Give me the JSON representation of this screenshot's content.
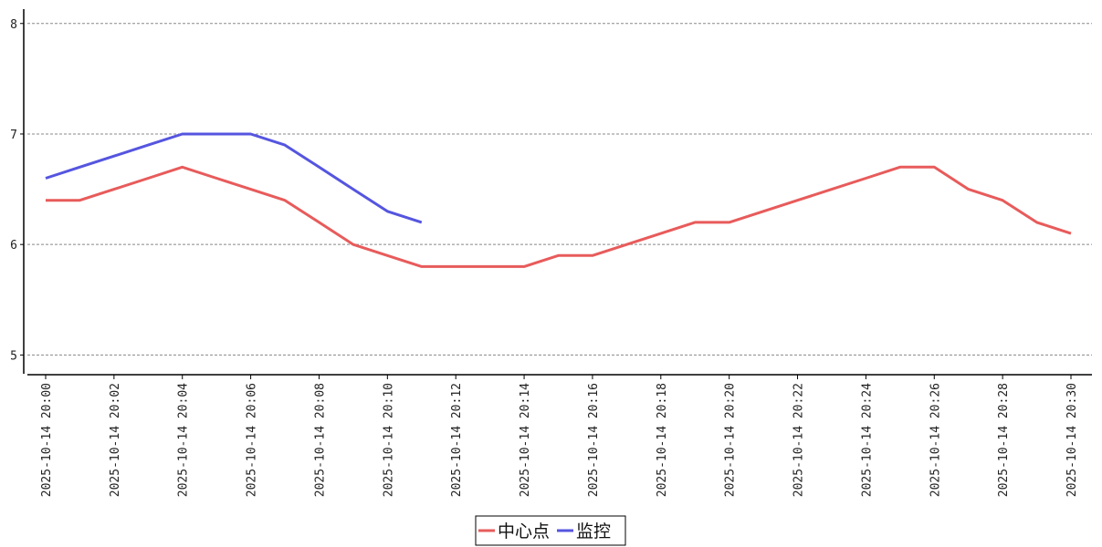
{
  "chart_data": {
    "type": "line",
    "title": "",
    "xlabel": "",
    "ylabel": "",
    "x": [
      "2025-10-14 20:00",
      "2025-10-14 20:01",
      "2025-10-14 20:02",
      "2025-10-14 20:03",
      "2025-10-14 20:04",
      "2025-10-14 20:05",
      "2025-10-14 20:06",
      "2025-10-14 20:07",
      "2025-10-14 20:08",
      "2025-10-14 20:09",
      "2025-10-14 20:10",
      "2025-10-14 20:11",
      "2025-10-14 20:12",
      "2025-10-14 20:13",
      "2025-10-14 20:14",
      "2025-10-14 20:15",
      "2025-10-14 20:16",
      "2025-10-14 20:17",
      "2025-10-14 20:18",
      "2025-10-14 20:19",
      "2025-10-14 20:20",
      "2025-10-14 20:21",
      "2025-10-14 20:22",
      "2025-10-14 20:23",
      "2025-10-14 20:24",
      "2025-10-14 20:25",
      "2025-10-14 20:26",
      "2025-10-14 20:27",
      "2025-10-14 20:28",
      "2025-10-14 20:29",
      "2025-10-14 20:30"
    ],
    "x_tick_labels": [
      "2025-10-14 20:00",
      "2025-10-14 20:02",
      "2025-10-14 20:04",
      "2025-10-14 20:06",
      "2025-10-14 20:08",
      "2025-10-14 20:10",
      "2025-10-14 20:12",
      "2025-10-14 20:14",
      "2025-10-14 20:16",
      "2025-10-14 20:18",
      "2025-10-14 20:20",
      "2025-10-14 20:22",
      "2025-10-14 20:24",
      "2025-10-14 20:26",
      "2025-10-14 20:28",
      "2025-10-14 20:30"
    ],
    "y_ticks": [
      "5",
      "6",
      "7",
      "8"
    ],
    "ylim": [
      4.83,
      8.13
    ],
    "grid": "horizontal dashed",
    "legend_position": "bottom-center",
    "series": [
      {
        "name": "中心点",
        "color": "#e85b5b",
        "values": [
          6.4,
          6.4,
          6.5,
          6.6,
          6.7,
          6.6,
          6.5,
          6.4,
          6.2,
          6.0,
          5.9,
          5.8,
          5.8,
          5.8,
          5.8,
          5.9,
          5.9,
          6.0,
          6.1,
          6.2,
          6.2,
          6.3,
          6.4,
          6.5,
          6.6,
          6.7,
          6.7,
          6.5,
          6.4,
          6.2,
          6.1
        ]
      },
      {
        "name": "监控",
        "color": "#5555e0",
        "values": [
          6.6,
          6.7,
          6.8,
          6.9,
          7.0,
          7.0,
          7.0,
          6.9,
          6.7,
          6.5,
          6.3,
          6.2,
          null,
          null,
          null,
          null,
          null,
          null,
          null,
          null,
          null,
          null,
          null,
          null,
          null,
          null,
          null,
          null,
          null,
          null,
          null
        ]
      }
    ]
  }
}
